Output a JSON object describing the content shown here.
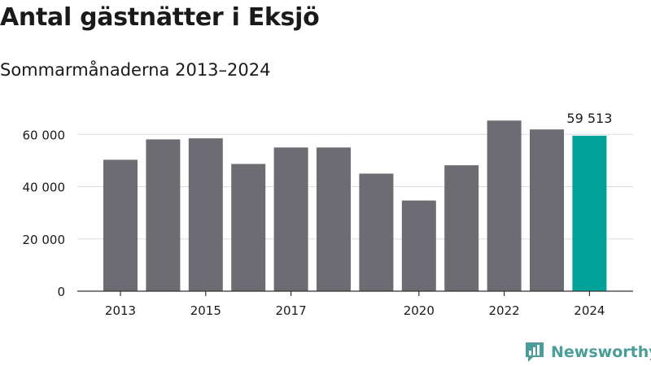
{
  "header": {
    "title": "Antal gästnätter i Eksjö",
    "subtitle": "Sommarmånaderna 2013–2024"
  },
  "brand": {
    "name": "Newsworthy",
    "logo_icon": "newsworthy-logo-icon"
  },
  "colors": {
    "bar": "#6d6c72",
    "highlight": "#00a39a",
    "grid": "#dddddd",
    "axis": "#333333",
    "brand": "#4a9d99"
  },
  "chart_data": {
    "type": "bar",
    "categories": [
      "2013",
      "2014",
      "2015",
      "2016",
      "2017",
      "2018",
      "2019",
      "2020",
      "2021",
      "2022",
      "2023",
      "2024"
    ],
    "values": [
      50300,
      58100,
      58500,
      48700,
      55000,
      55000,
      45000,
      34700,
      48200,
      65300,
      61900,
      59513
    ],
    "highlight_index": 11,
    "value_labels": [
      {
        "index": 11,
        "text": "59 513"
      }
    ],
    "x_tick_labels": [
      "2013",
      "",
      "2015",
      "",
      "2017",
      "",
      "",
      "2020",
      "",
      "2022",
      "",
      "2024"
    ],
    "y_ticks": [
      0,
      20000,
      40000,
      60000
    ],
    "y_tick_labels": [
      "0",
      "20 000",
      "40 000",
      "60 000"
    ],
    "ylim": [
      0,
      66000
    ],
    "grid": true,
    "title": "Antal gästnätter i Eksjö",
    "subtitle": "Sommarmånaderna 2013–2024",
    "xlabel": "",
    "ylabel": ""
  }
}
